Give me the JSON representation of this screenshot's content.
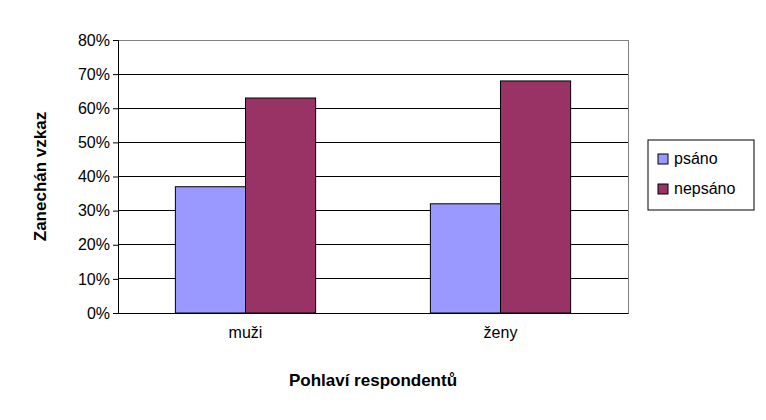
{
  "chart_data": {
    "type": "bar",
    "x_label": "Pohlaví respondentů",
    "y_label": "Zanechán vzkaz",
    "categories": [
      "muži",
      "ženy"
    ],
    "series": [
      {
        "name": "psáno",
        "color": "#9999ff",
        "values": [
          37,
          32
        ]
      },
      {
        "name": "nepsáno",
        "color": "#993366",
        "values": [
          63,
          68
        ]
      }
    ],
    "ylim": [
      0,
      80
    ],
    "yticks": [
      {
        "value": 0,
        "label": "0%"
      },
      {
        "value": 10,
        "label": "10%"
      },
      {
        "value": 20,
        "label": "20%"
      },
      {
        "value": 30,
        "label": "30%"
      },
      {
        "value": 40,
        "label": "40%"
      },
      {
        "value": 50,
        "label": "50%"
      },
      {
        "value": 60,
        "label": "60%"
      },
      {
        "value": 70,
        "label": "70%"
      },
      {
        "value": 80,
        "label": "80%"
      }
    ],
    "grid": true,
    "legend": "right"
  }
}
